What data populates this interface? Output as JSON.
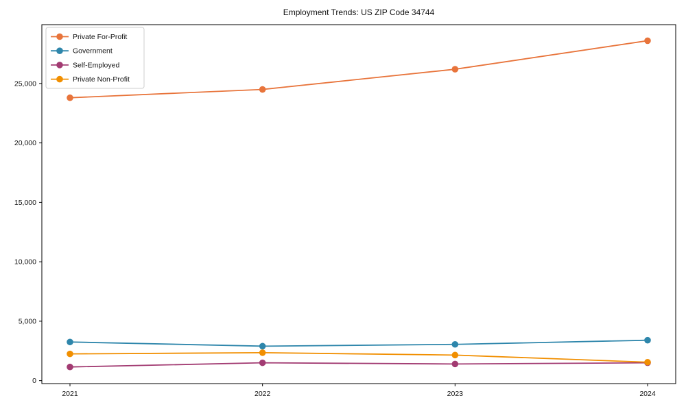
{
  "chart_data": {
    "type": "line",
    "title": "Employment Trends: US ZIP Code 34744",
    "x": [
      2021,
      2022,
      2023,
      2024
    ],
    "x_tick_labels": [
      "2021",
      "2022",
      "2023",
      "2024"
    ],
    "y_ticks": [
      0,
      5000,
      10000,
      15000,
      20000,
      25000
    ],
    "y_tick_labels": [
      "0",
      "5,000",
      "10,000",
      "15,000",
      "20,000",
      "25,000"
    ],
    "ylim": [
      -250,
      29950
    ],
    "grid": false,
    "legend_position": "upper-left",
    "background_color": "#ffffff",
    "spine_color": "#000000",
    "legend_border_color": "#cccccc",
    "series": [
      {
        "name": "Private For-Profit",
        "color": "#E8743B",
        "values": [
          23800,
          24500,
          26200,
          28600
        ]
      },
      {
        "name": "Government",
        "color": "#2E86AB",
        "values": [
          3250,
          2900,
          3050,
          3400
        ]
      },
      {
        "name": "Self-Employed",
        "color": "#A23B72",
        "values": [
          1150,
          1500,
          1400,
          1500
        ]
      },
      {
        "name": "Private Non-Profit",
        "color": "#F18F01",
        "values": [
          2250,
          2350,
          2150,
          1550
        ]
      }
    ]
  }
}
